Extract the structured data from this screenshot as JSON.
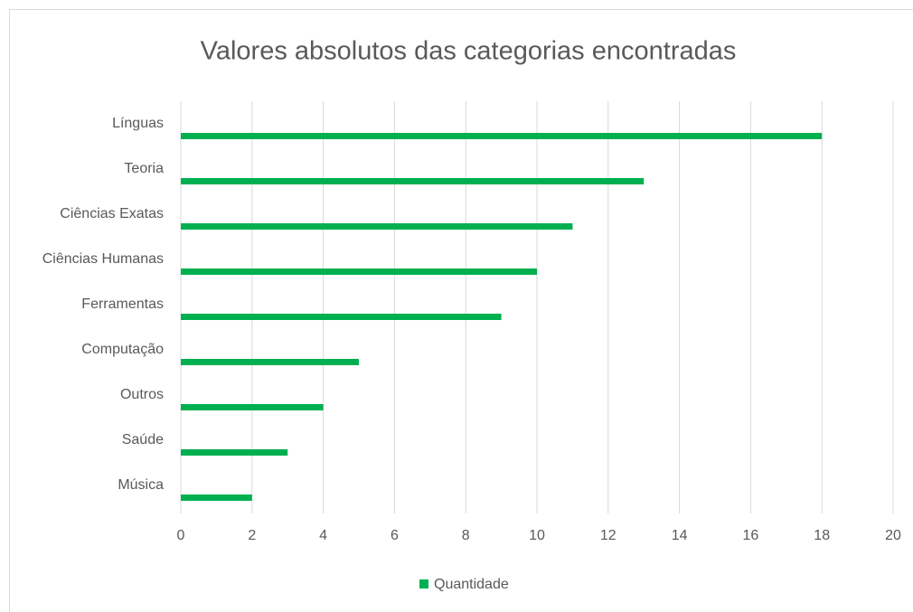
{
  "chart_data": {
    "type": "barh",
    "title": "Valores absolutos das categorias encontradas",
    "categories": [
      "Línguas",
      "Teoria",
      "Ciências Exatas",
      "Ciências Humanas",
      "Ferramentas",
      "Computação",
      "Outros",
      "Saúde",
      "Música"
    ],
    "series": [
      {
        "name": "Quantidade",
        "color": "#00b050",
        "values": [
          18,
          13,
          11,
          10,
          9,
          5,
          4,
          3,
          2
        ]
      }
    ],
    "xlim": [
      0,
      20
    ],
    "xticks": [
      0,
      2,
      4,
      6,
      8,
      10,
      12,
      14,
      16,
      18,
      20
    ],
    "grid": true,
    "legend": "bottom"
  }
}
